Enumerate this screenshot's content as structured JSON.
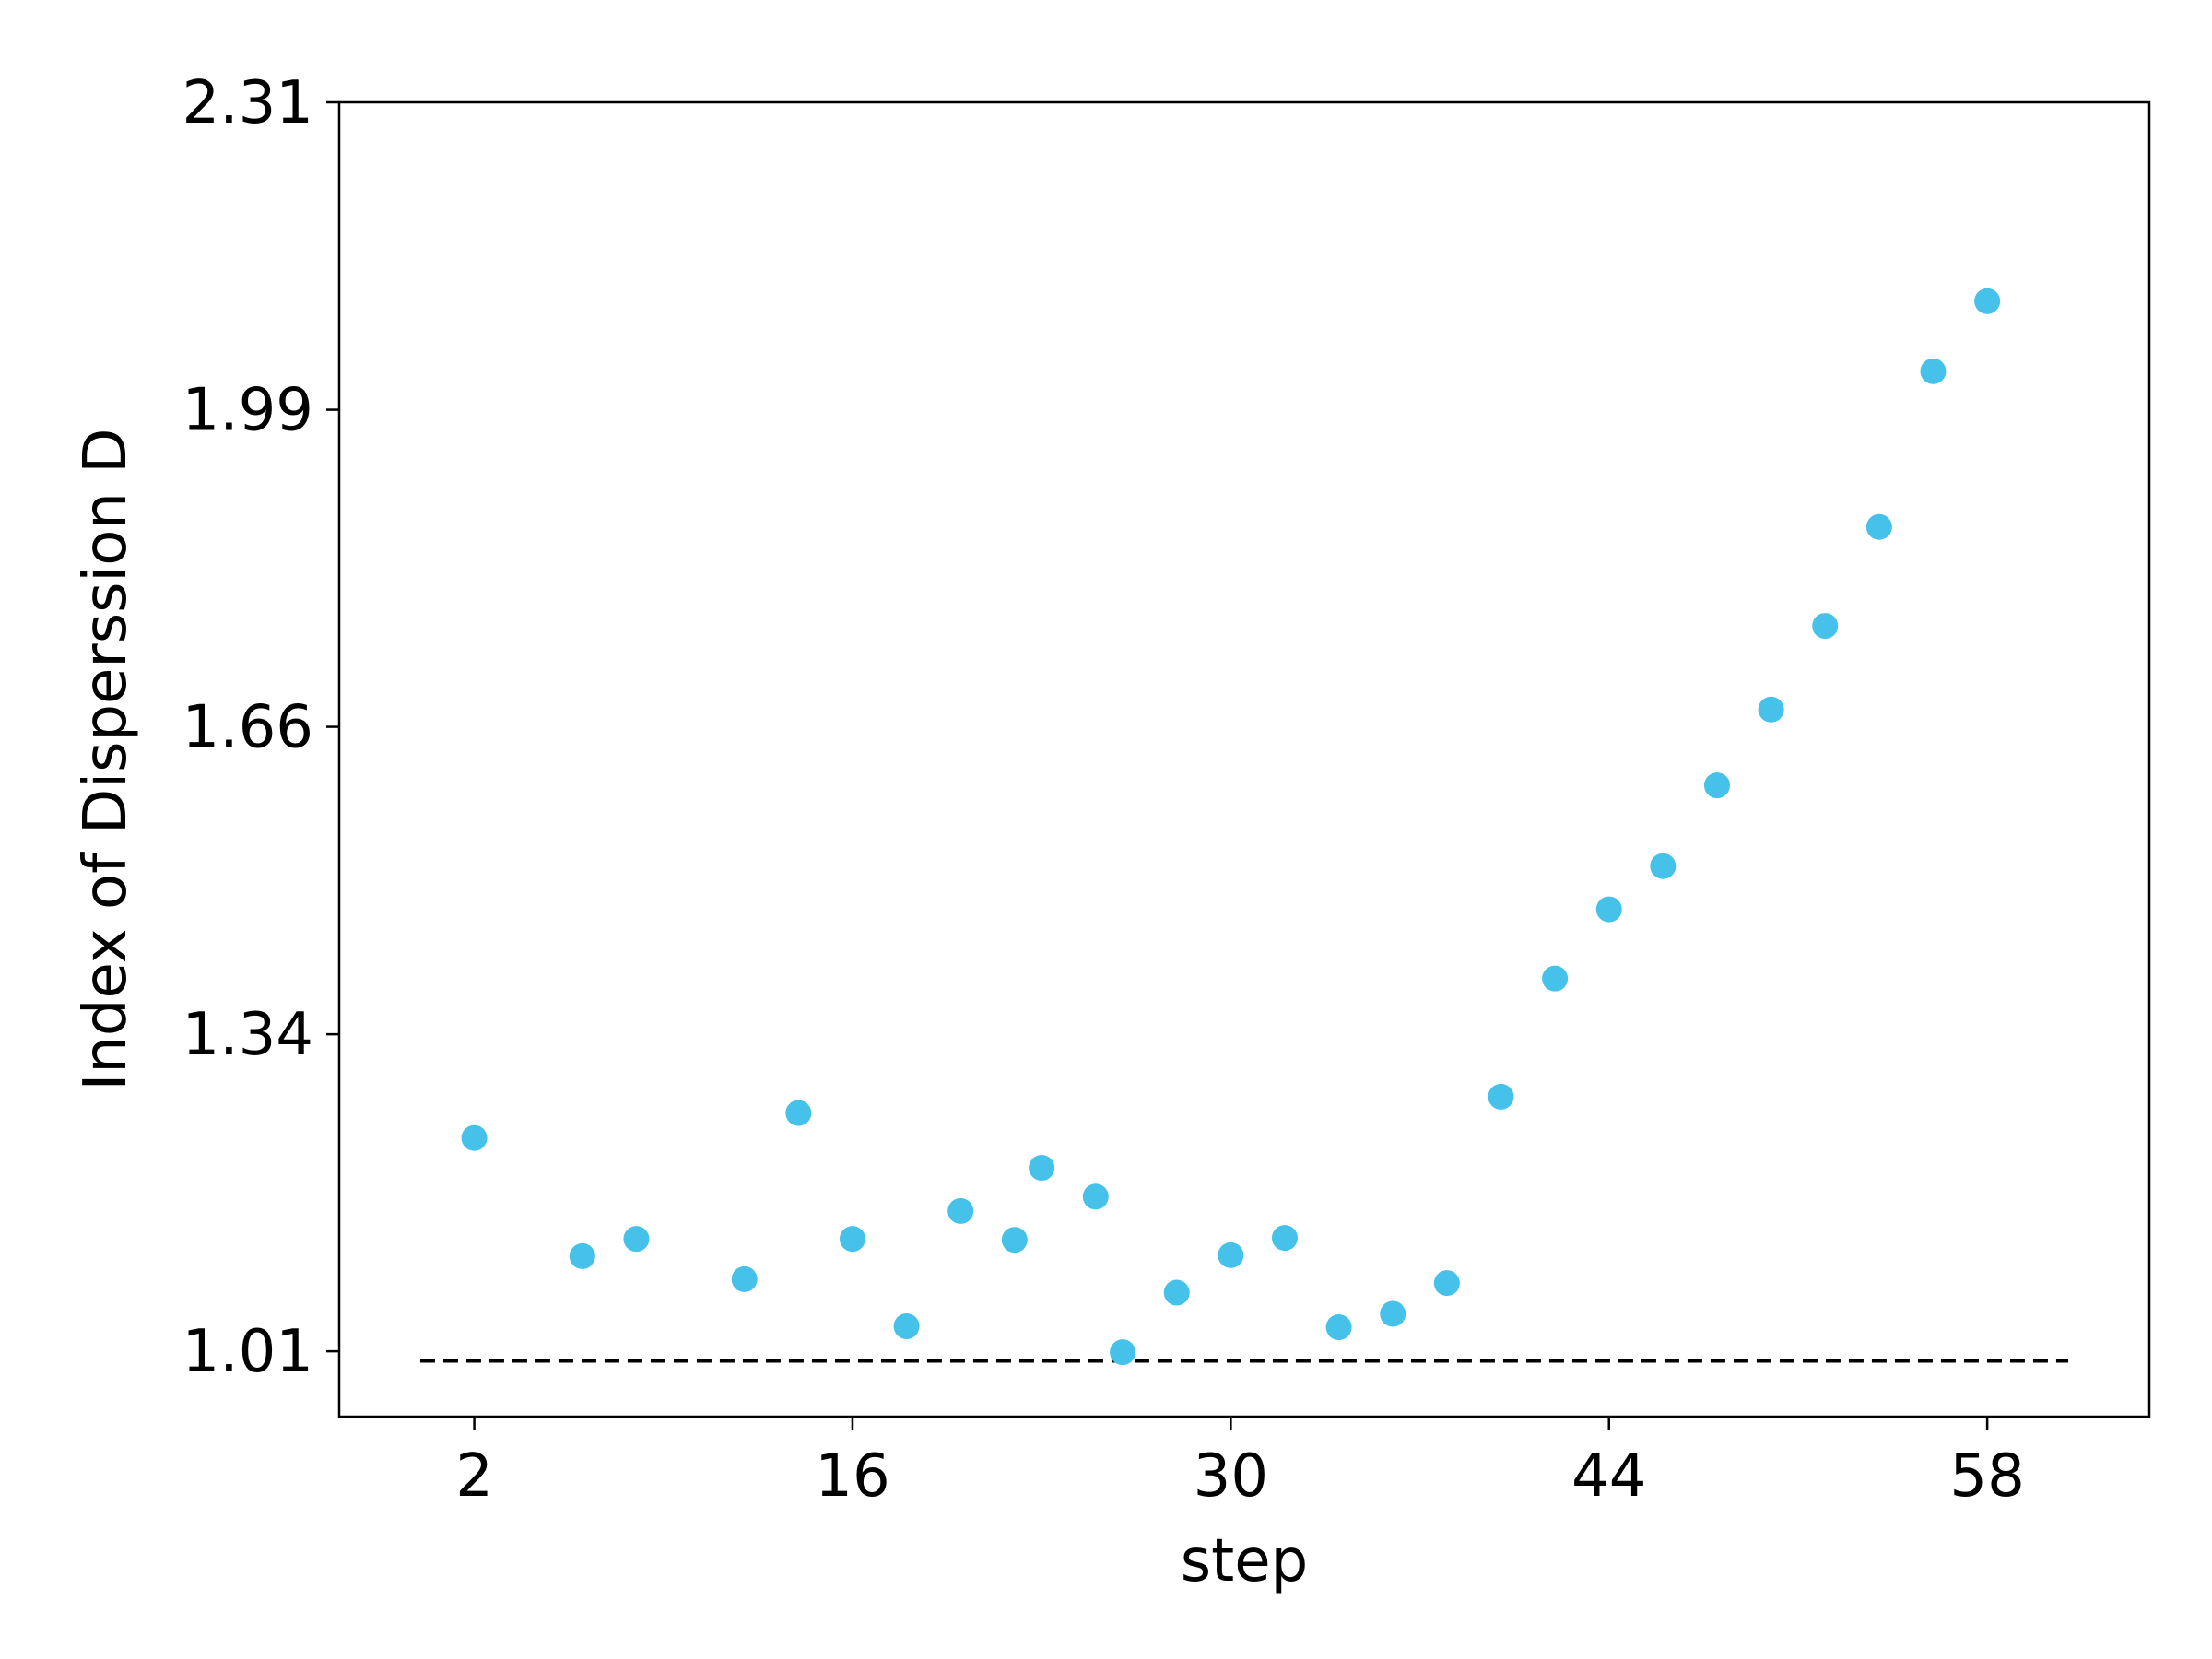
{
  "chart_data": {
    "type": "scatter",
    "title": "",
    "xlabel": "step",
    "ylabel": "Index of Disperssion D",
    "xlim": [
      -3,
      64
    ],
    "ylim": [
      0.942,
      2.31
    ],
    "x_ticks": [
      2,
      16,
      30,
      44,
      58
    ],
    "x_tick_labels": [
      "2",
      "16",
      "30",
      "44",
      "58"
    ],
    "y_ticks": [
      1.01,
      1.34,
      1.66,
      1.99,
      2.31
    ],
    "y_tick_labels": [
      "1.01",
      "1.34",
      "1.66",
      "1.99",
      "2.31"
    ],
    "grid": false,
    "reference_line": {
      "y": 1.0,
      "x_start": 0,
      "x_end": 61,
      "style": "dashed",
      "color": "#000000"
    },
    "series": [
      {
        "color": "#45c1ea",
        "x": [
          2,
          6,
          8,
          12,
          14,
          16,
          18,
          20,
          22,
          23,
          25,
          26,
          28,
          30,
          32,
          34,
          36,
          38,
          40,
          42,
          44,
          46,
          48,
          50,
          52,
          54,
          56,
          58
        ],
        "y": [
          1.232,
          1.109,
          1.127,
          1.085,
          1.258,
          1.127,
          1.036,
          1.156,
          1.126,
          1.201,
          1.171,
          1.009,
          1.071,
          1.11,
          1.128,
          1.035,
          1.049,
          1.081,
          1.275,
          1.398,
          1.47,
          1.515,
          1.599,
          1.678,
          1.765,
          1.868,
          2.03,
          2.103
        ]
      }
    ]
  }
}
